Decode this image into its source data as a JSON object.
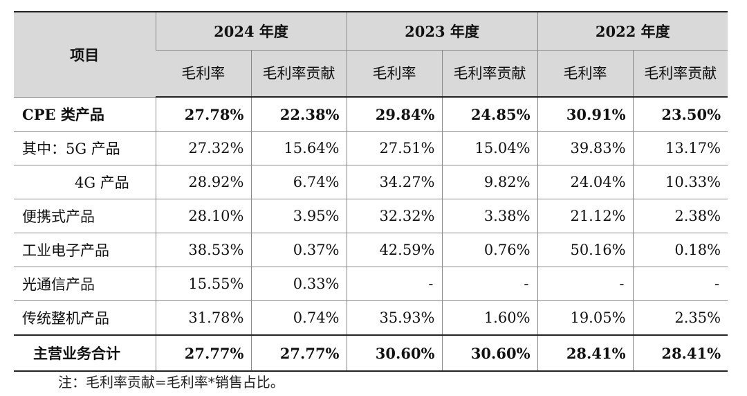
{
  "table": {
    "item_header": "项目",
    "years": [
      "2024 年度",
      "2023 年度",
      "2022 年度"
    ],
    "sub_headers": [
      "毛利率",
      "毛利率贡献"
    ],
    "rows": [
      {
        "name": "CPE 类产品",
        "values": [
          "27.78%",
          "22.38%",
          "29.84%",
          "24.85%",
          "30.91%",
          "23.50%"
        ]
      },
      {
        "name": "其中：5G 产品",
        "values": [
          "27.32%",
          "15.64%",
          "27.51%",
          "15.04%",
          "39.83%",
          "13.17%"
        ]
      },
      {
        "name": "4G 产品",
        "values": [
          "28.92%",
          "6.74%",
          "34.27%",
          "9.82%",
          "24.04%",
          "10.33%"
        ]
      },
      {
        "name": "便携式产品",
        "values": [
          "28.10%",
          "3.95%",
          "32.32%",
          "3.38%",
          "21.12%",
          "2.38%"
        ]
      },
      {
        "name": "工业电子产品",
        "values": [
          "38.53%",
          "0.37%",
          "42.59%",
          "0.76%",
          "50.16%",
          "0.18%"
        ]
      },
      {
        "name": "光通信产品",
        "values": [
          "15.55%",
          "0.33%",
          "-",
          "-",
          "-",
          "-"
        ]
      },
      {
        "name": "传统整机产品",
        "values": [
          "31.78%",
          "0.74%",
          "35.93%",
          "1.60%",
          "19.05%",
          "2.35%"
        ]
      },
      {
        "name": "主营业务合计",
        "values": [
          "27.77%",
          "27.77%",
          "30.60%",
          "30.60%",
          "28.41%",
          "28.41%"
        ]
      }
    ]
  },
  "note": "注：毛利率贡献=毛利率*销售占比。"
}
